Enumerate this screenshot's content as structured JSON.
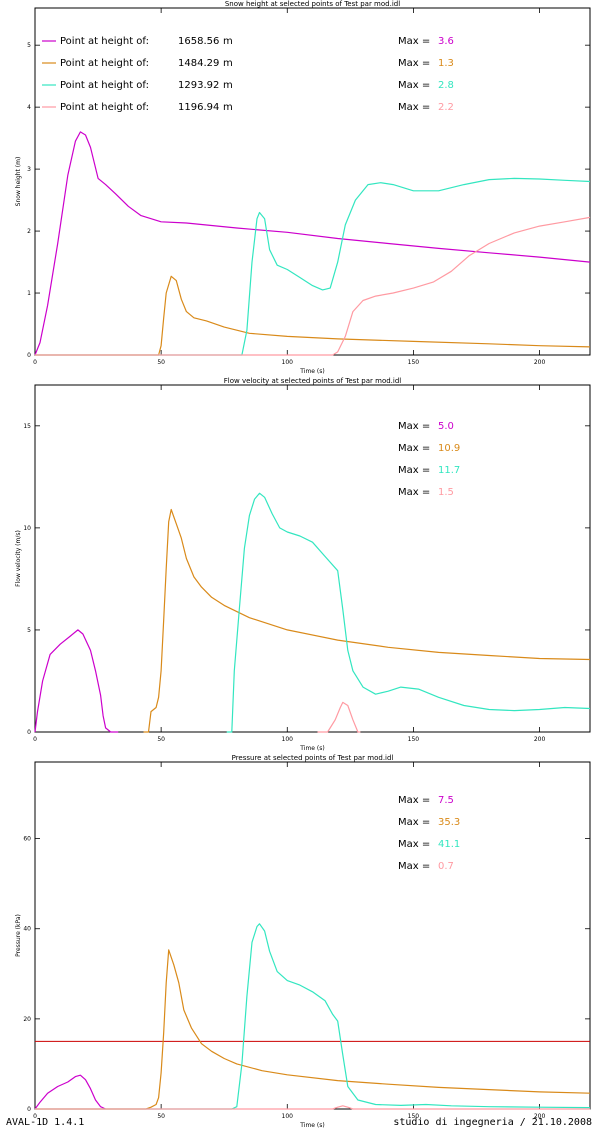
{
  "footer": {
    "left": "AVAL-1D 1.4.1",
    "right": "studio di ingegneria  /  21.10.2008"
  },
  "colors": {
    "magenta": "#cc00cc",
    "orange": "#d98a1a",
    "cyan": "#33e6c0",
    "pink": "#ff9aa2",
    "threshold": "#cc0000",
    "axis": "#000000"
  },
  "legend_points": [
    {
      "label": "Point at height of:",
      "height": "1658.56",
      "unit": "m",
      "color": "#cc00cc"
    },
    {
      "label": "Point at height of:",
      "height": "1484.29",
      "unit": "m",
      "color": "#d98a1a"
    },
    {
      "label": "Point at height of:",
      "height": "1293.92",
      "unit": "m",
      "color": "#33e6c0"
    },
    {
      "label": "Point at height of:",
      "height": "1196.94",
      "unit": "m",
      "color": "#ff9aa2"
    }
  ],
  "chart_data": [
    {
      "type": "line",
      "title": "Snow height at selected points of Test par mod.idl",
      "xlabel": "Time (s)",
      "ylabel": "Snow height (m)",
      "xlim": [
        0,
        220
      ],
      "ylim": [
        0,
        5.6
      ],
      "xticks": [
        0,
        50,
        100,
        150,
        200
      ],
      "yticks": [
        0,
        1,
        2,
        3,
        4,
        5
      ],
      "max_label": "Max =",
      "max_values": [
        "3.6",
        "1.3",
        "2.8",
        "2.2"
      ],
      "series": [
        {
          "color": "#cc00cc",
          "points": [
            [
              0,
              0
            ],
            [
              2,
              0.2
            ],
            [
              5,
              0.8
            ],
            [
              9,
              1.8
            ],
            [
              13,
              2.9
            ],
            [
              16,
              3.45
            ],
            [
              18,
              3.6
            ],
            [
              20,
              3.55
            ],
            [
              22,
              3.35
            ],
            [
              25,
              2.85
            ],
            [
              28,
              2.75
            ],
            [
              32,
              2.6
            ],
            [
              37,
              2.4
            ],
            [
              42,
              2.25
            ],
            [
              50,
              2.15
            ],
            [
              60,
              2.13
            ],
            [
              80,
              2.05
            ],
            [
              100,
              1.98
            ],
            [
              120,
              1.88
            ],
            [
              140,
              1.8
            ],
            [
              160,
              1.72
            ],
            [
              180,
              1.65
            ],
            [
              200,
              1.58
            ],
            [
              220,
              1.5
            ]
          ]
        },
        {
          "color": "#d98a1a",
          "points": [
            [
              0,
              0
            ],
            [
              49,
              0
            ],
            [
              50,
              0.15
            ],
            [
              51,
              0.6
            ],
            [
              52,
              1.0
            ],
            [
              54,
              1.27
            ],
            [
              56,
              1.2
            ],
            [
              58,
              0.9
            ],
            [
              60,
              0.7
            ],
            [
              63,
              0.6
            ],
            [
              68,
              0.55
            ],
            [
              75,
              0.45
            ],
            [
              85,
              0.35
            ],
            [
              100,
              0.3
            ],
            [
              120,
              0.26
            ],
            [
              150,
              0.22
            ],
            [
              180,
              0.18
            ],
            [
              200,
              0.15
            ],
            [
              220,
              0.13
            ]
          ]
        },
        {
          "color": "#33e6c0",
          "points": [
            [
              0,
              0
            ],
            [
              82,
              0
            ],
            [
              84,
              0.4
            ],
            [
              86,
              1.5
            ],
            [
              88,
              2.2
            ],
            [
              89,
              2.3
            ],
            [
              91,
              2.2
            ],
            [
              93,
              1.7
            ],
            [
              96,
              1.45
            ],
            [
              100,
              1.38
            ],
            [
              105,
              1.25
            ],
            [
              110,
              1.12
            ],
            [
              114,
              1.05
            ],
            [
              117,
              1.08
            ],
            [
              120,
              1.5
            ],
            [
              123,
              2.1
            ],
            [
              127,
              2.5
            ],
            [
              132,
              2.75
            ],
            [
              137,
              2.78
            ],
            [
              142,
              2.75
            ],
            [
              150,
              2.65
            ],
            [
              160,
              2.65
            ],
            [
              170,
              2.75
            ],
            [
              180,
              2.83
            ],
            [
              190,
              2.85
            ],
            [
              200,
              2.84
            ],
            [
              210,
              2.82
            ],
            [
              220,
              2.8
            ]
          ]
        },
        {
          "color": "#ff9aa2",
          "points": [
            [
              0,
              0
            ],
            [
              118,
              0
            ],
            [
              120,
              0.05
            ],
            [
              123,
              0.3
            ],
            [
              126,
              0.7
            ],
            [
              130,
              0.88
            ],
            [
              135,
              0.95
            ],
            [
              142,
              1.0
            ],
            [
              150,
              1.08
            ],
            [
              158,
              1.18
            ],
            [
              165,
              1.35
            ],
            [
              172,
              1.6
            ],
            [
              180,
              1.8
            ],
            [
              190,
              1.97
            ],
            [
              200,
              2.08
            ],
            [
              210,
              2.15
            ],
            [
              220,
              2.22
            ]
          ]
        }
      ]
    },
    {
      "type": "line",
      "title": "Flow velocity at selected points of Test par mod.idl",
      "xlabel": "Time (s)",
      "ylabel": "Flow velocity (m/s)",
      "xlim": [
        0,
        220
      ],
      "ylim": [
        0,
        17
      ],
      "xticks": [
        0,
        50,
        100,
        150,
        200
      ],
      "yticks": [
        0,
        5,
        10,
        15
      ],
      "max_label": "Max =",
      "max_values": [
        "5.0",
        "10.9",
        "11.7",
        "1.5"
      ],
      "series": [
        {
          "color": "#cc00cc",
          "points": [
            [
              0,
              0
            ],
            [
              1,
              1
            ],
            [
              3,
              2.5
            ],
            [
              6,
              3.8
            ],
            [
              10,
              4.3
            ],
            [
              14,
              4.7
            ],
            [
              17,
              5.0
            ],
            [
              19,
              4.8
            ],
            [
              22,
              4.0
            ],
            [
              24,
              3.0
            ],
            [
              26,
              1.8
            ],
            [
              27,
              0.8
            ],
            [
              28,
              0.2
            ],
            [
              30,
              0
            ],
            [
              33,
              0
            ]
          ]
        },
        {
          "color": "#d98a1a",
          "points": [
            [
              43,
              0
            ],
            [
              45,
              0
            ],
            [
              46,
              1.0
            ],
            [
              48,
              1.2
            ],
            [
              49,
              1.7
            ],
            [
              50,
              3.0
            ],
            [
              51,
              5.5
            ],
            [
              52,
              8.0
            ],
            [
              53,
              10.3
            ],
            [
              54,
              10.9
            ],
            [
              56,
              10.2
            ],
            [
              58,
              9.5
            ],
            [
              60,
              8.5
            ],
            [
              63,
              7.6
            ],
            [
              66,
              7.1
            ],
            [
              70,
              6.6
            ],
            [
              75,
              6.2
            ],
            [
              85,
              5.6
            ],
            [
              100,
              5.0
            ],
            [
              120,
              4.5
            ],
            [
              140,
              4.15
            ],
            [
              160,
              3.9
            ],
            [
              180,
              3.75
            ],
            [
              200,
              3.6
            ],
            [
              220,
              3.55
            ]
          ]
        },
        {
          "color": "#33e6c0",
          "points": [
            [
              76,
              0
            ],
            [
              78,
              0
            ],
            [
              79,
              3.0
            ],
            [
              81,
              6.0
            ],
            [
              83,
              9.0
            ],
            [
              85,
              10.6
            ],
            [
              87,
              11.4
            ],
            [
              89,
              11.7
            ],
            [
              91,
              11.5
            ],
            [
              94,
              10.7
            ],
            [
              97,
              10.0
            ],
            [
              100,
              9.8
            ],
            [
              105,
              9.6
            ],
            [
              110,
              9.3
            ],
            [
              115,
              8.6
            ],
            [
              120,
              7.9
            ],
            [
              122,
              6.0
            ],
            [
              124,
              4.0
            ],
            [
              126,
              3.0
            ],
            [
              130,
              2.2
            ],
            [
              135,
              1.85
            ],
            [
              140,
              2.0
            ],
            [
              145,
              2.2
            ],
            [
              152,
              2.1
            ],
            [
              160,
              1.7
            ],
            [
              170,
              1.3
            ],
            [
              180,
              1.1
            ],
            [
              190,
              1.05
            ],
            [
              200,
              1.1
            ],
            [
              210,
              1.2
            ],
            [
              220,
              1.15
            ]
          ]
        },
        {
          "color": "#ff9aa2",
          "points": [
            [
              112,
              0
            ],
            [
              116,
              0
            ],
            [
              119,
              0.6
            ],
            [
              121,
              1.2
            ],
            [
              122,
              1.45
            ],
            [
              124,
              1.3
            ],
            [
              126,
              0.6
            ],
            [
              128,
              0
            ],
            [
              129,
              0
            ]
          ]
        }
      ]
    },
    {
      "type": "line",
      "title": "Pressure at selected points of Test par mod.idl",
      "xlabel": "Time (s)",
      "ylabel": "Pressure (kPa)",
      "xlim": [
        0,
        220
      ],
      "ylim": [
        0,
        77
      ],
      "xticks": [
        0,
        50,
        100,
        150,
        200
      ],
      "yticks": [
        0,
        20,
        40,
        60
      ],
      "max_label": "Max =",
      "max_values": [
        "7.5",
        "35.3",
        "41.1",
        "0.7"
      ],
      "threshold": 15,
      "series": [
        {
          "color": "#cc00cc",
          "points": [
            [
              0,
              0
            ],
            [
              2,
              1.5
            ],
            [
              5,
              3.5
            ],
            [
              9,
              5.0
            ],
            [
              13,
              6.0
            ],
            [
              16,
              7.2
            ],
            [
              18,
              7.5
            ],
            [
              20,
              6.5
            ],
            [
              22,
              4.5
            ],
            [
              24,
              2.0
            ],
            [
              26,
              0.5
            ],
            [
              28,
              0
            ]
          ]
        },
        {
          "color": "#d98a1a",
          "points": [
            [
              0,
              0
            ],
            [
              44,
              0
            ],
            [
              46,
              0.4
            ],
            [
              48,
              1.0
            ],
            [
              49,
              2.5
            ],
            [
              50,
              8.0
            ],
            [
              51,
              17.0
            ],
            [
              52,
              28.0
            ],
            [
              53,
              35.3
            ],
            [
              55,
              32.0
            ],
            [
              57,
              28.0
            ],
            [
              59,
              22.0
            ],
            [
              62,
              18.0
            ],
            [
              66,
              14.5
            ],
            [
              70,
              12.8
            ],
            [
              75,
              11.2
            ],
            [
              80,
              10.0
            ],
            [
              90,
              8.5
            ],
            [
              100,
              7.6
            ],
            [
              120,
              6.3
            ],
            [
              140,
              5.5
            ],
            [
              160,
              4.8
            ],
            [
              180,
              4.3
            ],
            [
              200,
              3.8
            ],
            [
              220,
              3.5
            ]
          ]
        },
        {
          "color": "#33e6c0",
          "points": [
            [
              0,
              0
            ],
            [
              78,
              0
            ],
            [
              80,
              0.5
            ],
            [
              82,
              10.0
            ],
            [
              84,
              25.0
            ],
            [
              86,
              37.0
            ],
            [
              88,
              40.5
            ],
            [
              89,
              41.1
            ],
            [
              91,
              39.5
            ],
            [
              93,
              35.0
            ],
            [
              96,
              30.5
            ],
            [
              100,
              28.5
            ],
            [
              105,
              27.5
            ],
            [
              110,
              26.0
            ],
            [
              115,
              24.0
            ],
            [
              118,
              21.0
            ],
            [
              120,
              19.5
            ],
            [
              122,
              12.0
            ],
            [
              124,
              5.0
            ],
            [
              128,
              2.0
            ],
            [
              135,
              1.0
            ],
            [
              145,
              0.8
            ],
            [
              155,
              1.0
            ],
            [
              165,
              0.7
            ],
            [
              180,
              0.5
            ],
            [
              200,
              0.4
            ],
            [
              220,
              0.3
            ]
          ]
        },
        {
          "color": "#ff9aa2",
          "points": [
            [
              0,
              0
            ],
            [
              118,
              0
            ],
            [
              120,
              0.4
            ],
            [
              122,
              0.7
            ],
            [
              124,
              0.4
            ],
            [
              126,
              0
            ],
            [
              220,
              0
            ]
          ]
        }
      ]
    }
  ]
}
